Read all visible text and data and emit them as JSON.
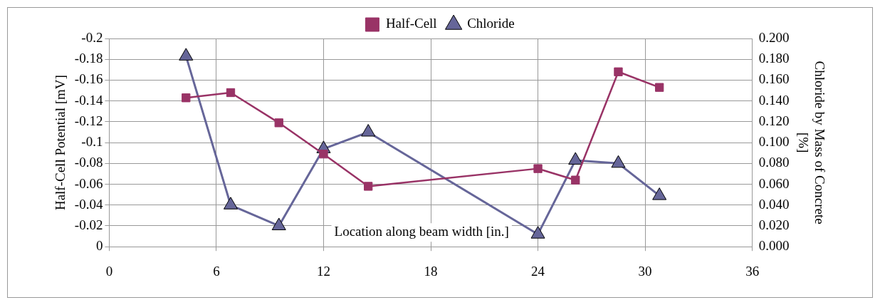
{
  "chart_data": {
    "type": "line",
    "xlabel": "Location along beam width [in.]",
    "ylabel": "Half-Cell Potential [mV]",
    "y2label": "Chloride by Mass of Concrete [%]",
    "xlim": [
      0,
      36
    ],
    "xticks": [
      0,
      6,
      12,
      18,
      24,
      30,
      36
    ],
    "ylim": [
      0,
      -0.2
    ],
    "yticks": [
      0,
      -0.02,
      -0.04,
      -0.06,
      -0.08,
      -0.1,
      -0.12,
      -0.14,
      -0.16,
      -0.18,
      -0.2
    ],
    "y2lim": [
      0,
      0.2
    ],
    "y2ticks": [
      {
        "value": 0,
        "label": "0.000"
      },
      {
        "value": 0.02,
        "label": "0.020"
      },
      {
        "value": 0.04,
        "label": "0.040"
      },
      {
        "value": 0.06,
        "label": "0.060"
      },
      {
        "value": 0.08,
        "label": "0.080"
      },
      {
        "value": 0.1,
        "label": "0.100"
      },
      {
        "value": 0.12,
        "label": "0.120"
      },
      {
        "value": 0.14,
        "label": "0.140"
      },
      {
        "value": 0.16,
        "label": "0.160"
      },
      {
        "value": 0.18,
        "label": "0.180"
      },
      {
        "value": 0.2,
        "label": "0.200"
      }
    ],
    "grid": true,
    "legend": "top",
    "line_style": "solid",
    "series": [
      {
        "name": "Half-Cell",
        "color": "#993366",
        "marker": "square",
        "x": [
          4.3,
          6.8,
          9.5,
          12,
          14.5,
          24,
          26.1,
          28.5,
          30.8
        ],
        "values": [
          -0.143,
          -0.148,
          -0.119,
          -0.089,
          -0.058,
          -0.075,
          -0.064,
          -0.168,
          -0.153
        ]
      },
      {
        "name": "Chloride",
        "axis": "y2",
        "color": "#666699",
        "marker": "triangle",
        "x": [
          4.3,
          6.8,
          9.5,
          12,
          14.5,
          24,
          26.1,
          28.5,
          30.8
        ],
        "values": [
          0.183,
          0.04,
          0.02,
          0.094,
          0.11,
          0.012,
          0.083,
          0.08,
          0.049
        ]
      }
    ]
  }
}
